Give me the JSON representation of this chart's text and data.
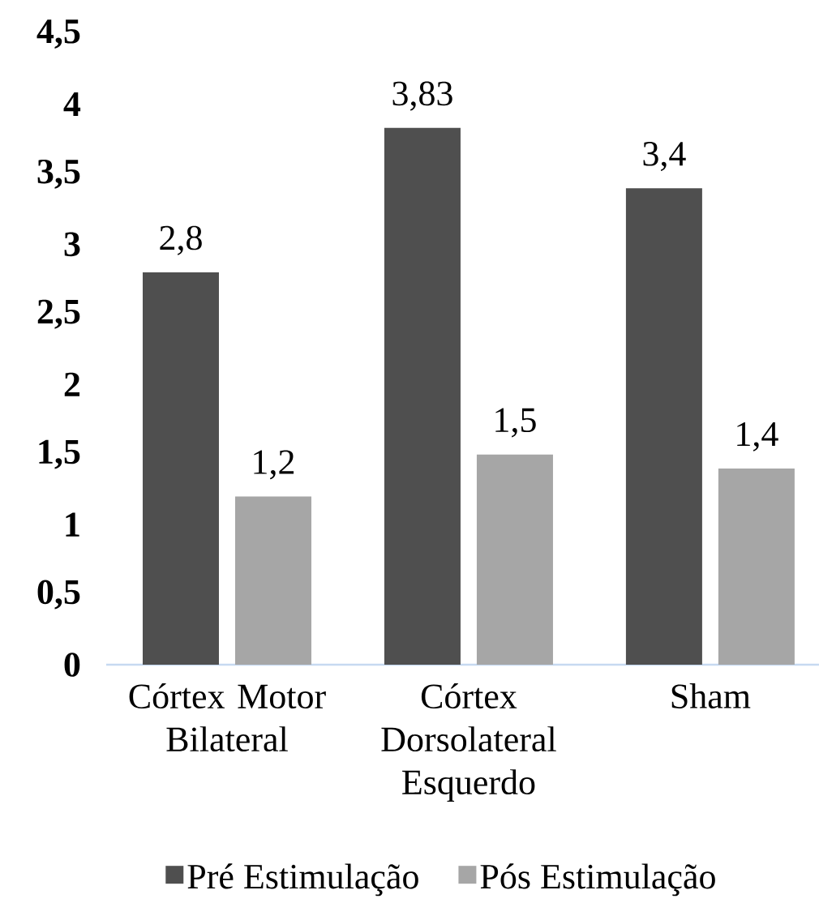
{
  "chart_data": {
    "type": "bar",
    "categories": [
      "Córtex Motor Bilateral",
      "Córtex Dorsolateral Esquerdo",
      "Sham"
    ],
    "series": [
      {
        "name": "Pré Estimulação",
        "color": "#4f4f4f",
        "values": [
          2.8,
          3.83,
          3.4
        ],
        "value_labels": [
          "2,8",
          "3,83",
          "3,4"
        ]
      },
      {
        "name": "Pós Estimulação",
        "color": "#a6a6a6",
        "values": [
          1.2,
          1.5,
          1.4
        ],
        "value_labels": [
          "1,2",
          "1,5",
          "1,4"
        ]
      }
    ],
    "ylim": [
      0,
      4.5
    ],
    "yticks": [
      0,
      {
        "value": 0.5,
        "label": "0,5"
      },
      1,
      {
        "value": 1.5,
        "label": "1,5"
      },
      2,
      {
        "value": 2.5,
        "label": "2,5"
      },
      3,
      {
        "value": 3.5,
        "label": "3,5"
      },
      4,
      {
        "value": 4.5,
        "label": "4,5"
      }
    ],
    "legend": "bottom"
  }
}
